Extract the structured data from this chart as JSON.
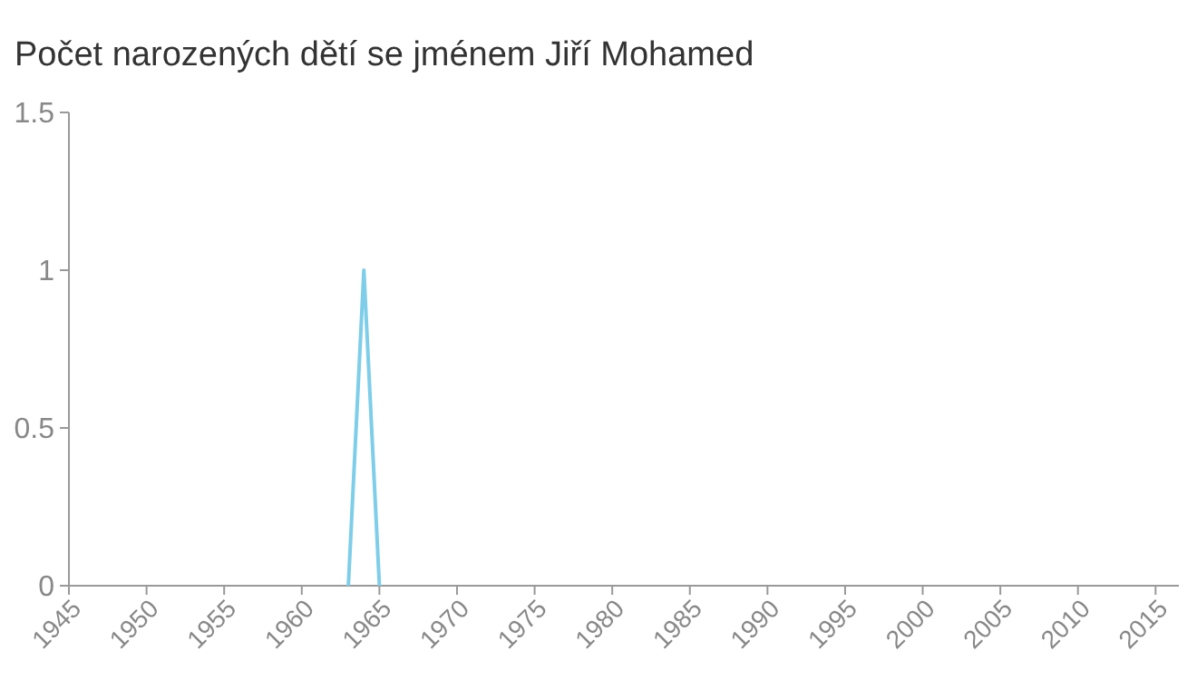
{
  "chart_data": {
    "type": "line",
    "title": "Počet narozených dětí se jménem Jiří Mohamed",
    "x": [
      1963,
      1964,
      1965
    ],
    "series": [
      {
        "color": "#7ecde9",
        "values": [
          0,
          1,
          0
        ]
      }
    ],
    "xlim": [
      1945,
      2016.5
    ],
    "xticks": [
      1945,
      1950,
      1955,
      1960,
      1965,
      1970,
      1975,
      1980,
      1985,
      1990,
      1995,
      2000,
      2005,
      2010,
      2015
    ],
    "ylim": [
      0,
      1.5
    ],
    "yticks": [
      0,
      0.5,
      1,
      1.5
    ],
    "grid": false
  }
}
